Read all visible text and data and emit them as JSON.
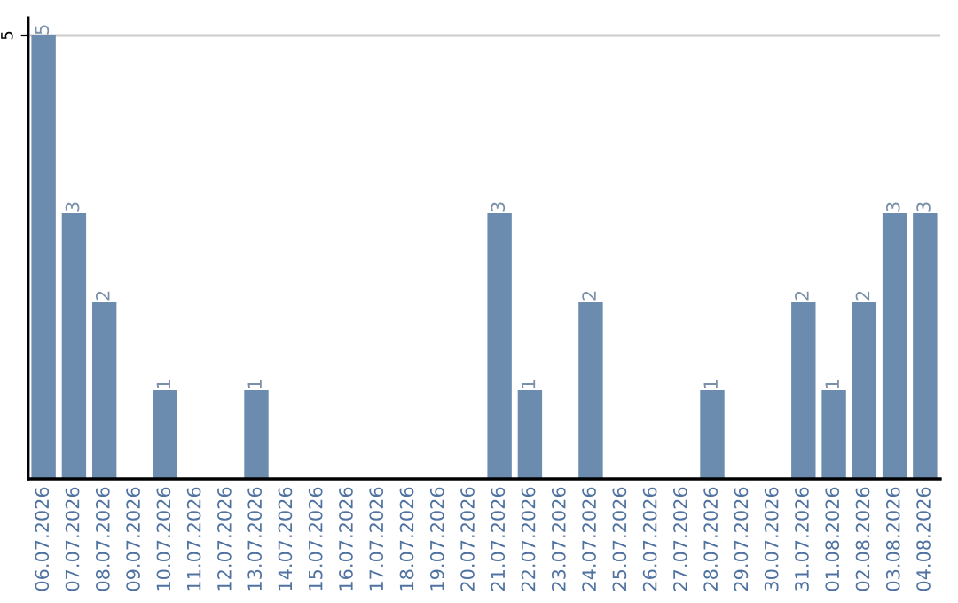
{
  "chart_data": {
    "type": "bar",
    "categories": [
      "06.07.2026",
      "07.07.2026",
      "08.07.2026",
      "09.07.2026",
      "10.07.2026",
      "11.07.2026",
      "12.07.2026",
      "13.07.2026",
      "14.07.2026",
      "15.07.2026",
      "16.07.2026",
      "17.07.2026",
      "18.07.2026",
      "19.07.2026",
      "20.07.2026",
      "21.07.2026",
      "22.07.2026",
      "23.07.2026",
      "24.07.2026",
      "25.07.2026",
      "26.07.2026",
      "27.07.2026",
      "28.07.2026",
      "29.07.2026",
      "30.07.2026",
      "31.07.2026",
      "01.08.2026",
      "02.08.2026",
      "03.08.2026",
      "04.08.2026"
    ],
    "values": [
      5,
      3,
      2,
      0,
      1,
      0,
      0,
      1,
      0,
      0,
      0,
      0,
      0,
      0,
      0,
      3,
      1,
      0,
      2,
      0,
      0,
      0,
      1,
      0,
      0,
      2,
      1,
      2,
      3,
      3
    ],
    "value_labels": [
      "5",
      "3",
      "2",
      null,
      "1",
      null,
      null,
      "1",
      null,
      null,
      null,
      null,
      null,
      null,
      null,
      "3",
      "1",
      null,
      "2",
      null,
      null,
      null,
      "1",
      null,
      null,
      "2",
      "1",
      "2",
      "3",
      "3"
    ],
    "color": "#6b8cae",
    "ylim": [
      0,
      5.2
    ],
    "yticks": [
      5
    ],
    "grid": "y"
  }
}
